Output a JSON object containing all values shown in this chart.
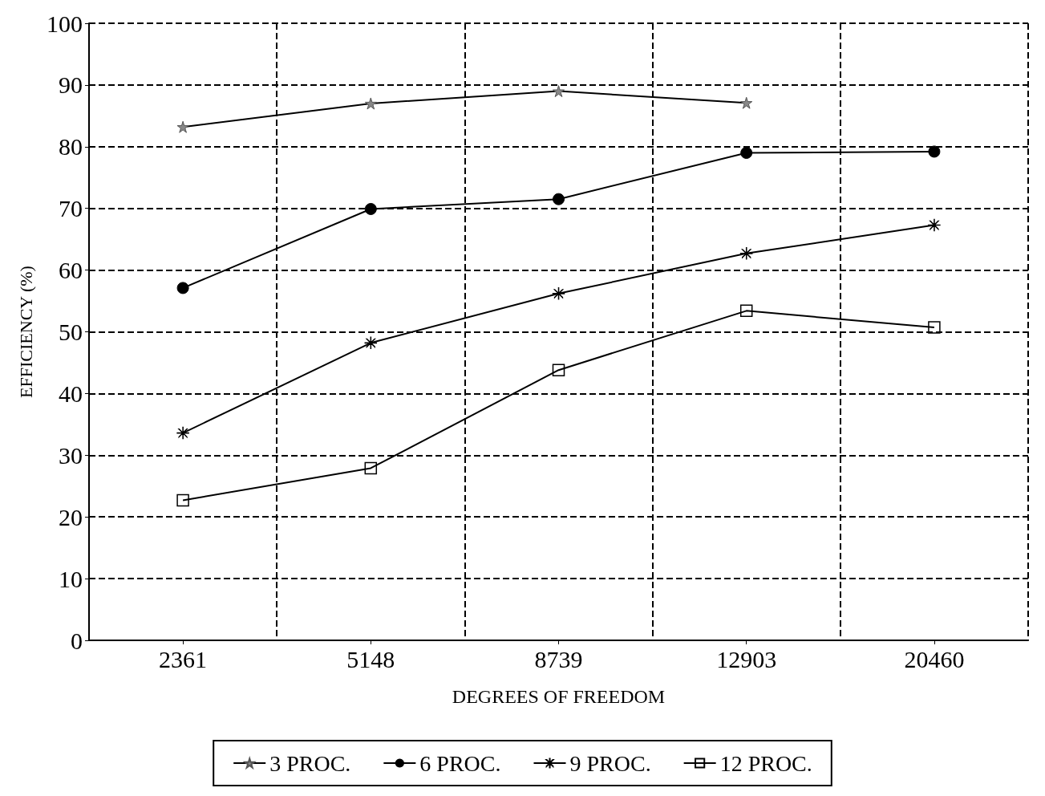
{
  "chart_data": {
    "type": "line",
    "xlabel": "DEGREES OF FREEDOM",
    "ylabel": "EFFICIENCY (%)",
    "categories": [
      "2361",
      "5148",
      "8739",
      "12903",
      "20460"
    ],
    "ylim": [
      0,
      100
    ],
    "yticks": [
      0,
      10,
      20,
      30,
      40,
      50,
      60,
      70,
      80,
      90,
      100
    ],
    "grid": true,
    "legend": "bottom",
    "line_style": "solid",
    "series": [
      {
        "name": "3 PROC.",
        "color": "#000000",
        "marker": "star",
        "values": [
          83.2,
          87,
          89,
          87.1,
          null
        ]
      },
      {
        "name": "6 PROC.",
        "color": "#000000",
        "marker": "circle",
        "values": [
          57.1,
          69.9,
          71.5,
          79,
          79.2
        ]
      },
      {
        "name": "9 PROC.",
        "color": "#000000",
        "marker": "cross",
        "values": [
          33.6,
          48.2,
          56.2,
          62.7,
          67.3
        ]
      },
      {
        "name": "12 PROC.",
        "color": "#000000",
        "marker": "square",
        "values": [
          22.7,
          27.9,
          43.8,
          53.4,
          50.7
        ]
      }
    ]
  }
}
